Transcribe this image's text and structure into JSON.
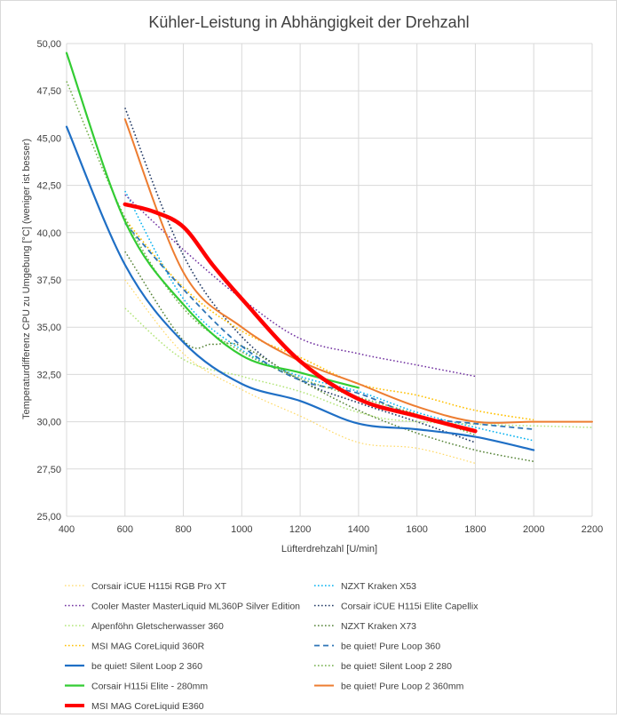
{
  "chart_data": {
    "type": "line",
    "title": "Kühler-Leistung in Abhängigkeit der Drehzahl",
    "xlabel": "Lüfterdrehzahl [U/min]",
    "ylabel": "Temperaturdifferenz CPU zu Umgebung [°C] (weniger ist besser)",
    "xlim": [
      400,
      2200
    ],
    "ylim": [
      25,
      50
    ],
    "x_ticks": [
      "400",
      "600",
      "800",
      "1000",
      "1200",
      "1400",
      "1600",
      "1800",
      "2000",
      "2200"
    ],
    "y_ticks": [
      "25,00",
      "27,50",
      "30,00",
      "32,50",
      "35,00",
      "37,50",
      "40,00",
      "42,50",
      "45,00",
      "47,50",
      "50,00"
    ],
    "grid": true,
    "legend_position": "bottom",
    "series": [
      {
        "name": "Corsair iCUE H115i RGB Pro XT",
        "color": "#ffd966",
        "style": "dotted",
        "width": 1.2,
        "points": [
          [
            600,
            37.5
          ],
          [
            800,
            33.6
          ],
          [
            1000,
            31.7
          ],
          [
            1200,
            30.3
          ],
          [
            1400,
            28.9
          ],
          [
            1600,
            28.6
          ],
          [
            1800,
            27.8
          ]
        ]
      },
      {
        "name": "NZXT Kraken X53",
        "color": "#00b0f0",
        "style": "dotted",
        "width": 1.5,
        "points": [
          [
            600,
            42.2
          ],
          [
            800,
            36.5
          ],
          [
            1000,
            33.8
          ],
          [
            1200,
            32.4
          ],
          [
            1400,
            31.6
          ],
          [
            1600,
            30.5
          ],
          [
            1800,
            29.7
          ],
          [
            2000,
            29.0
          ]
        ]
      },
      {
        "name": "Cooler Master MasterLiquid ML360P Silver Edition",
        "color": "#7030a0",
        "style": "dotted",
        "width": 1.5,
        "points": [
          [
            600,
            42.0
          ],
          [
            800,
            39.1
          ],
          [
            1000,
            36.5
          ],
          [
            1200,
            34.4
          ],
          [
            1400,
            33.6
          ],
          [
            1600,
            33.0
          ],
          [
            1800,
            32.4
          ]
        ]
      },
      {
        "name": "Corsair iCUE H115i Elite Capellix",
        "color": "#203864",
        "style": "dotted",
        "width": 1.6,
        "points": [
          [
            600,
            46.6
          ],
          [
            800,
            38.8
          ],
          [
            1000,
            34.5
          ],
          [
            1200,
            32.2
          ],
          [
            1400,
            31.0
          ],
          [
            1600,
            30.0
          ],
          [
            1800,
            28.9
          ]
        ]
      },
      {
        "name": "Alpenföhn Gletscherwasser 360",
        "color": "#b4e57a",
        "style": "dotted",
        "width": 1.5,
        "points": [
          [
            600,
            36.0
          ],
          [
            800,
            33.3
          ],
          [
            1000,
            32.4
          ],
          [
            1200,
            31.6
          ],
          [
            1400,
            30.5
          ],
          [
            1600,
            30.0
          ],
          [
            2200,
            29.7
          ]
        ]
      },
      {
        "name": "NZXT Kraken X73",
        "color": "#548235",
        "style": "dotted",
        "width": 1.5,
        "points": [
          [
            600,
            39.0
          ],
          [
            800,
            34.3
          ],
          [
            900,
            34.1
          ],
          [
            1000,
            34.0
          ],
          [
            1200,
            32.2
          ],
          [
            1400,
            30.6
          ],
          [
            1600,
            29.4
          ],
          [
            1800,
            28.5
          ],
          [
            2000,
            27.9
          ]
        ]
      },
      {
        "name": "MSI MAG CoreLiquid 360R",
        "color": "#ffc000",
        "style": "dotted",
        "width": 1.6,
        "points": [
          [
            600,
            40.7
          ],
          [
            800,
            37.1
          ],
          [
            1000,
            34.8
          ],
          [
            1200,
            33.4
          ],
          [
            1400,
            32.0
          ],
          [
            1600,
            31.4
          ],
          [
            1800,
            30.6
          ],
          [
            2000,
            30.1
          ]
        ]
      },
      {
        "name": "be quiet! Pure Loop 360",
        "color": "#2e75b6",
        "style": "dashed",
        "width": 1.8,
        "points": [
          [
            600,
            40.5
          ],
          [
            800,
            37.0
          ],
          [
            1000,
            34.0
          ],
          [
            1200,
            32.2
          ],
          [
            1400,
            31.5
          ],
          [
            1600,
            30.3
          ],
          [
            1800,
            29.9
          ],
          [
            2000,
            29.6
          ]
        ]
      },
      {
        "name": "be quiet! Silent Loop 2 360",
        "color": "#1f6fc5",
        "style": "solid",
        "width": 2.2,
        "points": [
          [
            400,
            45.6
          ],
          [
            600,
            38.3
          ],
          [
            800,
            34.2
          ],
          [
            1000,
            32.0
          ],
          [
            1200,
            31.1
          ],
          [
            1400,
            29.9
          ],
          [
            1600,
            29.6
          ],
          [
            1800,
            29.2
          ],
          [
            2000,
            28.5
          ]
        ]
      },
      {
        "name": "be quiet! Silent Loop 2 280",
        "color": "#70ad47",
        "style": "dotted",
        "width": 1.5,
        "points": [
          [
            400,
            48.0
          ],
          [
            600,
            40.8
          ],
          [
            800,
            36.0
          ],
          [
            1000,
            33.7
          ],
          [
            1200,
            32.3
          ],
          [
            1400,
            31.3
          ],
          [
            1600,
            30.4
          ],
          [
            1800,
            29.3
          ]
        ]
      },
      {
        "name": "Corsair H115i Elite - 280mm",
        "color": "#33cc33",
        "style": "solid",
        "width": 2.2,
        "points": [
          [
            400,
            49.5
          ],
          [
            600,
            40.6
          ],
          [
            800,
            36.2
          ],
          [
            1000,
            33.5
          ],
          [
            1200,
            32.6
          ],
          [
            1400,
            31.8
          ]
        ]
      },
      {
        "name": "be quiet! Pure Loop 2 360mm",
        "color": "#ed7d31",
        "style": "solid",
        "width": 2.0,
        "points": [
          [
            600,
            46.0
          ],
          [
            800,
            37.9
          ],
          [
            1000,
            35.0
          ],
          [
            1200,
            33.2
          ],
          [
            1400,
            32.0
          ],
          [
            1600,
            30.8
          ],
          [
            1800,
            30.0
          ],
          [
            2000,
            30.0
          ],
          [
            2200,
            30.0
          ]
        ]
      },
      {
        "name": "MSI MAG CoreLiquid E360",
        "color": "#ff0000",
        "style": "solid",
        "width": 4.5,
        "points": [
          [
            600,
            41.5
          ],
          [
            700,
            41.1
          ],
          [
            800,
            40.3
          ],
          [
            900,
            38.3
          ],
          [
            1000,
            36.5
          ],
          [
            1200,
            33.2
          ],
          [
            1400,
            31.2
          ],
          [
            1600,
            30.3
          ],
          [
            1800,
            29.5
          ]
        ]
      }
    ]
  }
}
